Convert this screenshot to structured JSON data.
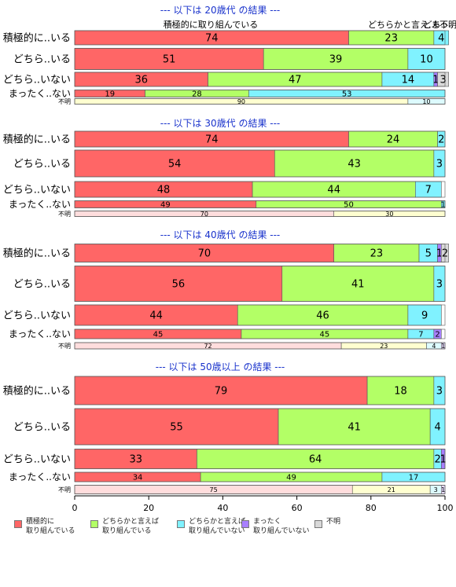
{
  "chart_data": {
    "type": "bar",
    "orientation": "horizontal-stacked-100",
    "xlim": [
      0,
      100
    ],
    "xticks": [
      "0",
      "20",
      "40",
      "60",
      "80",
      "100"
    ],
    "categories": [
      "積極的に..いる",
      "どちら..いる",
      "どちら..いない",
      "まったく..ない",
      "不明"
    ],
    "series": [
      {
        "name": "積極的に\n取り組んでいる",
        "color": "#ff6666"
      },
      {
        "name": "どちらかと言えば\n取り組んでいる",
        "color": "#b3ff66"
      },
      {
        "name": "どちらかと言えば\n取り組んでいない",
        "color": "#80f2ff"
      },
      {
        "name": "まったく\n取り組んでいない",
        "color": "#a880ff"
      },
      {
        "name": "不明",
        "color": "#d9d9d9"
      }
    ],
    "panels": [
      {
        "title": "--- 以下は 20歳代 の結果 ---",
        "series_labels": [
          "積極的に取り組んでいる",
          "どちらかと言え..",
          "どち..",
          "まっ..",
          "不明"
        ],
        "rows": [
          [
            74,
            23,
            4,
            0,
            0
          ],
          [
            51,
            39,
            10,
            0,
            0
          ],
          [
            36,
            47,
            14,
            1,
            3
          ],
          [
            19,
            28,
            53,
            0,
            0
          ],
          [
            0,
            90,
            10,
            0,
            0
          ]
        ]
      },
      {
        "title": "--- 以下は 30歳代 の結果 ---",
        "series_labels": [],
        "rows": [
          [
            74,
            24,
            2,
            0,
            0
          ],
          [
            54,
            43,
            3,
            0,
            0
          ],
          [
            48,
            44,
            7,
            0,
            0
          ],
          [
            49,
            50,
            1,
            0,
            0
          ],
          [
            70,
            30,
            0,
            0,
            0
          ]
        ]
      },
      {
        "title": "--- 以下は 40歳代 の結果 ---",
        "series_labels": [],
        "rows": [
          [
            70,
            23,
            5,
            1,
            2
          ],
          [
            56,
            41,
            3,
            0,
            0
          ],
          [
            44,
            46,
            9,
            0,
            0
          ],
          [
            45,
            45,
            7,
            2,
            0
          ],
          [
            72,
            23,
            4,
            1,
            0
          ]
        ]
      },
      {
        "title": "--- 以下は 50歳以上 の結果 ---",
        "series_labels": [],
        "rows": [
          [
            79,
            18,
            3,
            0,
            0
          ],
          [
            55,
            41,
            4,
            0,
            0
          ],
          [
            33,
            64,
            2,
            1,
            0
          ],
          [
            34,
            49,
            17,
            0,
            0
          ],
          [
            75,
            21,
            3,
            1,
            0
          ]
        ]
      }
    ]
  }
}
